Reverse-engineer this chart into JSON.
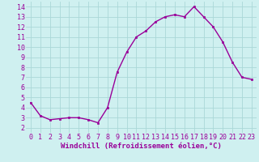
{
  "x": [
    0,
    1,
    2,
    3,
    4,
    5,
    6,
    7,
    8,
    9,
    10,
    11,
    12,
    13,
    14,
    15,
    16,
    17,
    18,
    19,
    20,
    21,
    22,
    23
  ],
  "y": [
    4.5,
    3.2,
    2.8,
    2.9,
    3.0,
    3.0,
    2.8,
    2.5,
    4.0,
    7.5,
    9.5,
    11.0,
    11.6,
    12.5,
    13.0,
    13.2,
    13.0,
    14.0,
    13.0,
    12.0,
    10.5,
    8.5,
    7.0,
    6.8
  ],
  "line_color": "#990099",
  "marker": "s",
  "marker_size": 2,
  "bg_color": "#cff0f0",
  "grid_color": "#aad8d8",
  "xlabel": "Windchill (Refroidissement éolien,°C)",
  "xlim": [
    -0.5,
    23.5
  ],
  "ylim": [
    1.5,
    14.5
  ],
  "yticks": [
    2,
    3,
    4,
    5,
    6,
    7,
    8,
    9,
    10,
    11,
    12,
    13,
    14
  ],
  "xticks": [
    0,
    1,
    2,
    3,
    4,
    5,
    6,
    7,
    8,
    9,
    10,
    11,
    12,
    13,
    14,
    15,
    16,
    17,
    18,
    19,
    20,
    21,
    22,
    23
  ],
  "xlabel_fontsize": 6.5,
  "tick_fontsize": 6,
  "line_width": 1.0
}
